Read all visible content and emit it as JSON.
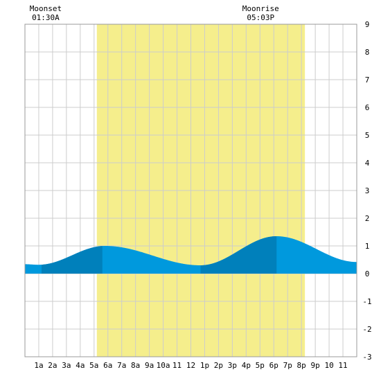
{
  "chart_data": {
    "type": "area",
    "title": "",
    "xlabel": "",
    "ylabel": "",
    "xlim": [
      0,
      24
    ],
    "ylim": [
      -3,
      9
    ],
    "grid": true,
    "x_ticks": [
      {
        "x": 1,
        "label": "1a"
      },
      {
        "x": 2,
        "label": "2a"
      },
      {
        "x": 3,
        "label": "3a"
      },
      {
        "x": 4,
        "label": "4a"
      },
      {
        "x": 5,
        "label": "5a"
      },
      {
        "x": 6,
        "label": "6a"
      },
      {
        "x": 7,
        "label": "7a"
      },
      {
        "x": 8,
        "label": "8a"
      },
      {
        "x": 9,
        "label": "9a"
      },
      {
        "x": 10,
        "label": "10a"
      },
      {
        "x": 11,
        "label": "11"
      },
      {
        "x": 12,
        "label": "12"
      },
      {
        "x": 13,
        "label": "1p"
      },
      {
        "x": 14,
        "label": "2p"
      },
      {
        "x": 15,
        "label": "3p"
      },
      {
        "x": 16,
        "label": "4p"
      },
      {
        "x": 17,
        "label": "5p"
      },
      {
        "x": 18,
        "label": "6p"
      },
      {
        "x": 19,
        "label": "7p"
      },
      {
        "x": 20,
        "label": "8p"
      },
      {
        "x": 21,
        "label": "9p"
      },
      {
        "x": 22,
        "label": "10"
      },
      {
        "x": 23,
        "label": "11"
      }
    ],
    "y_ticks": [
      -3,
      -2,
      -1,
      0,
      1,
      2,
      3,
      4,
      5,
      6,
      7,
      8,
      9
    ],
    "daylight": {
      "start": 5.2,
      "end": 20.25,
      "color": "#f5ee8c"
    },
    "colors": {
      "tide_light": "#0099dd",
      "tide_dark": "#0080bb",
      "grid": "#cccccc",
      "border": "#999999",
      "background": "#ffffff"
    },
    "dark_bands": [
      {
        "start": 1.2,
        "end": 5.6
      },
      {
        "start": 12.7,
        "end": 18.2
      }
    ],
    "tide_extrema": [
      {
        "x": 0.0,
        "y": 0.34
      },
      {
        "x": 1.0,
        "y": 0.32
      },
      {
        "x": 5.8,
        "y": 1.0
      },
      {
        "x": 12.7,
        "y": 0.3
      },
      {
        "x": 18.2,
        "y": 1.35
      },
      {
        "x": 24.0,
        "y": 0.42
      }
    ],
    "annotations": [
      {
        "title": "Moonset",
        "time": "01:30A",
        "x": 1.5
      },
      {
        "title": "Moonrise",
        "time": "05:03P",
        "x": 17.05
      }
    ]
  }
}
